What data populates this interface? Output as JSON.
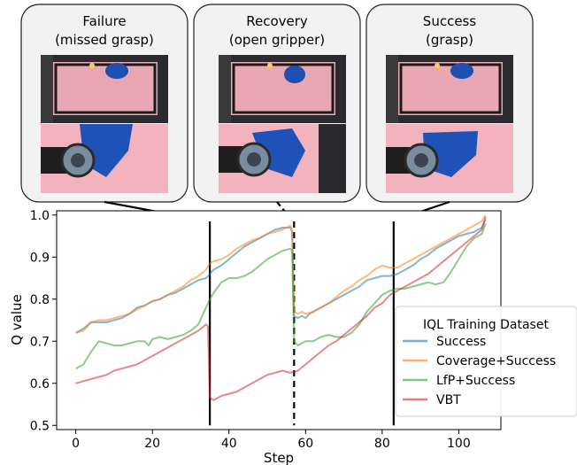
{
  "panels": [
    {
      "line1": "Failure",
      "line2": "(missed grasp)"
    },
    {
      "line1": "Recovery",
      "line2": "(open gripper)"
    },
    {
      "line1": "Success",
      "line2": "(grasp)"
    }
  ],
  "chart_data": {
    "type": "line",
    "title": "",
    "xlabel": "Step",
    "ylabel": "Q value",
    "xlim": [
      -5,
      111
    ],
    "ylim": [
      0.49,
      1.01
    ],
    "xticks": [
      0,
      20,
      40,
      60,
      80,
      100
    ],
    "yticks": [
      0.5,
      0.6,
      0.7,
      0.8,
      0.9,
      1.0
    ],
    "ytick_labels": [
      "0.5",
      "0.6",
      "0.7",
      "0.8",
      "0.9",
      "1.0"
    ],
    "grid": false,
    "legend_title": "IQL Training Dataset",
    "legend_placement": "center-right",
    "markers": [
      {
        "x": 35,
        "style": "solid"
      },
      {
        "x": 57,
        "style": "dashed"
      },
      {
        "x": 83,
        "style": "solid"
      }
    ],
    "series": [
      {
        "name": "Success",
        "color": "#1f77b4",
        "points": [
          [
            0,
            0.72
          ],
          [
            2,
            0.73
          ],
          [
            4,
            0.745
          ],
          [
            6,
            0.745
          ],
          [
            8,
            0.745
          ],
          [
            10,
            0.75
          ],
          [
            12,
            0.755
          ],
          [
            14,
            0.765
          ],
          [
            16,
            0.78
          ],
          [
            18,
            0.785
          ],
          [
            20,
            0.795
          ],
          [
            22,
            0.8
          ],
          [
            24,
            0.81
          ],
          [
            26,
            0.815
          ],
          [
            28,
            0.825
          ],
          [
            30,
            0.835
          ],
          [
            32,
            0.845
          ],
          [
            34,
            0.85
          ],
          [
            35,
            0.86
          ],
          [
            36,
            0.87
          ],
          [
            38,
            0.88
          ],
          [
            40,
            0.895
          ],
          [
            42,
            0.91
          ],
          [
            44,
            0.925
          ],
          [
            46,
            0.935
          ],
          [
            48,
            0.945
          ],
          [
            50,
            0.955
          ],
          [
            52,
            0.965
          ],
          [
            54,
            0.97
          ],
          [
            56,
            0.97
          ],
          [
            56.5,
            0.96
          ],
          [
            57,
            0.76
          ],
          [
            58,
            0.755
          ],
          [
            59,
            0.76
          ],
          [
            60,
            0.755
          ],
          [
            61,
            0.765
          ],
          [
            62,
            0.77
          ],
          [
            64,
            0.78
          ],
          [
            66,
            0.79
          ],
          [
            68,
            0.8
          ],
          [
            70,
            0.81
          ],
          [
            72,
            0.82
          ],
          [
            74,
            0.83
          ],
          [
            76,
            0.845
          ],
          [
            78,
            0.85
          ],
          [
            80,
            0.855
          ],
          [
            82,
            0.855
          ],
          [
            84,
            0.86
          ],
          [
            86,
            0.87
          ],
          [
            88,
            0.88
          ],
          [
            90,
            0.895
          ],
          [
            92,
            0.905
          ],
          [
            94,
            0.92
          ],
          [
            96,
            0.93
          ],
          [
            98,
            0.94
          ],
          [
            100,
            0.95
          ],
          [
            102,
            0.955
          ],
          [
            104,
            0.96
          ],
          [
            106,
            0.97
          ],
          [
            107,
            0.99
          ]
        ]
      },
      {
        "name": "Coverage+Success",
        "color": "#ff7f0e",
        "points": [
          [
            0,
            0.72
          ],
          [
            2,
            0.725
          ],
          [
            4,
            0.745
          ],
          [
            6,
            0.75
          ],
          [
            8,
            0.75
          ],
          [
            10,
            0.755
          ],
          [
            12,
            0.76
          ],
          [
            14,
            0.765
          ],
          [
            16,
            0.775
          ],
          [
            18,
            0.785
          ],
          [
            20,
            0.795
          ],
          [
            22,
            0.8
          ],
          [
            24,
            0.81
          ],
          [
            26,
            0.82
          ],
          [
            28,
            0.83
          ],
          [
            30,
            0.845
          ],
          [
            32,
            0.855
          ],
          [
            34,
            0.87
          ],
          [
            35,
            0.885
          ],
          [
            36,
            0.89
          ],
          [
            38,
            0.895
          ],
          [
            40,
            0.905
          ],
          [
            42,
            0.92
          ],
          [
            44,
            0.93
          ],
          [
            46,
            0.94
          ],
          [
            48,
            0.945
          ],
          [
            50,
            0.955
          ],
          [
            52,
            0.96
          ],
          [
            54,
            0.965
          ],
          [
            56,
            0.975
          ],
          [
            56.5,
            0.965
          ],
          [
            57,
            0.77
          ],
          [
            58,
            0.765
          ],
          [
            59,
            0.77
          ],
          [
            60,
            0.765
          ],
          [
            62,
            0.77
          ],
          [
            64,
            0.78
          ],
          [
            66,
            0.79
          ],
          [
            68,
            0.805
          ],
          [
            70,
            0.82
          ],
          [
            72,
            0.83
          ],
          [
            74,
            0.845
          ],
          [
            76,
            0.855
          ],
          [
            78,
            0.87
          ],
          [
            80,
            0.88
          ],
          [
            82,
            0.875
          ],
          [
            84,
            0.875
          ],
          [
            86,
            0.885
          ],
          [
            88,
            0.895
          ],
          [
            90,
            0.905
          ],
          [
            92,
            0.915
          ],
          [
            94,
            0.925
          ],
          [
            96,
            0.935
          ],
          [
            98,
            0.945
          ],
          [
            100,
            0.955
          ],
          [
            102,
            0.965
          ],
          [
            104,
            0.975
          ],
          [
            106,
            0.985
          ],
          [
            107,
            1.0
          ]
        ]
      },
      {
        "name": "LfP+Success",
        "color": "#2ca02c",
        "points": [
          [
            0,
            0.635
          ],
          [
            2,
            0.645
          ],
          [
            4,
            0.675
          ],
          [
            6,
            0.7
          ],
          [
            8,
            0.695
          ],
          [
            10,
            0.69
          ],
          [
            12,
            0.69
          ],
          [
            14,
            0.695
          ],
          [
            16,
            0.7
          ],
          [
            18,
            0.7
          ],
          [
            19,
            0.69
          ],
          [
            20,
            0.705
          ],
          [
            22,
            0.71
          ],
          [
            24,
            0.705
          ],
          [
            26,
            0.71
          ],
          [
            28,
            0.715
          ],
          [
            30,
            0.725
          ],
          [
            32,
            0.74
          ],
          [
            34,
            0.78
          ],
          [
            35,
            0.8
          ],
          [
            36,
            0.815
          ],
          [
            38,
            0.84
          ],
          [
            40,
            0.85
          ],
          [
            42,
            0.85
          ],
          [
            44,
            0.855
          ],
          [
            46,
            0.865
          ],
          [
            48,
            0.88
          ],
          [
            50,
            0.895
          ],
          [
            52,
            0.905
          ],
          [
            54,
            0.915
          ],
          [
            56,
            0.92
          ],
          [
            56.5,
            0.915
          ],
          [
            57,
            0.7
          ],
          [
            58,
            0.69
          ],
          [
            60,
            0.7
          ],
          [
            62,
            0.7
          ],
          [
            64,
            0.71
          ],
          [
            66,
            0.715
          ],
          [
            68,
            0.71
          ],
          [
            70,
            0.71
          ],
          [
            72,
            0.72
          ],
          [
            74,
            0.74
          ],
          [
            76,
            0.77
          ],
          [
            78,
            0.79
          ],
          [
            80,
            0.81
          ],
          [
            82,
            0.82
          ],
          [
            84,
            0.825
          ],
          [
            86,
            0.825
          ],
          [
            88,
            0.83
          ],
          [
            90,
            0.835
          ],
          [
            92,
            0.84
          ],
          [
            94,
            0.835
          ],
          [
            96,
            0.84
          ],
          [
            98,
            0.865
          ],
          [
            100,
            0.895
          ],
          [
            102,
            0.925
          ],
          [
            104,
            0.945
          ],
          [
            106,
            0.955
          ],
          [
            107,
            0.98
          ]
        ]
      },
      {
        "name": "VBT",
        "color": "#d62728",
        "points": [
          [
            0,
            0.6
          ],
          [
            2,
            0.605
          ],
          [
            4,
            0.61
          ],
          [
            6,
            0.615
          ],
          [
            8,
            0.62
          ],
          [
            10,
            0.63
          ],
          [
            12,
            0.635
          ],
          [
            14,
            0.64
          ],
          [
            16,
            0.645
          ],
          [
            18,
            0.655
          ],
          [
            20,
            0.665
          ],
          [
            22,
            0.675
          ],
          [
            24,
            0.685
          ],
          [
            26,
            0.695
          ],
          [
            28,
            0.705
          ],
          [
            30,
            0.715
          ],
          [
            32,
            0.725
          ],
          [
            34,
            0.74
          ],
          [
            34.5,
            0.735
          ],
          [
            35,
            0.565
          ],
          [
            36,
            0.56
          ],
          [
            38,
            0.57
          ],
          [
            40,
            0.575
          ],
          [
            42,
            0.58
          ],
          [
            44,
            0.59
          ],
          [
            46,
            0.6
          ],
          [
            48,
            0.61
          ],
          [
            50,
            0.62
          ],
          [
            52,
            0.625
          ],
          [
            54,
            0.63
          ],
          [
            56,
            0.625
          ],
          [
            58,
            0.63
          ],
          [
            60,
            0.645
          ],
          [
            62,
            0.66
          ],
          [
            64,
            0.675
          ],
          [
            66,
            0.69
          ],
          [
            68,
            0.7
          ],
          [
            70,
            0.715
          ],
          [
            72,
            0.73
          ],
          [
            74,
            0.745
          ],
          [
            76,
            0.76
          ],
          [
            78,
            0.78
          ],
          [
            80,
            0.79
          ],
          [
            82,
            0.81
          ],
          [
            84,
            0.82
          ],
          [
            86,
            0.83
          ],
          [
            88,
            0.84
          ],
          [
            90,
            0.85
          ],
          [
            92,
            0.86
          ],
          [
            94,
            0.875
          ],
          [
            96,
            0.89
          ],
          [
            98,
            0.905
          ],
          [
            100,
            0.92
          ],
          [
            102,
            0.935
          ],
          [
            104,
            0.95
          ],
          [
            106,
            0.965
          ],
          [
            107,
            0.995
          ]
        ]
      }
    ]
  }
}
